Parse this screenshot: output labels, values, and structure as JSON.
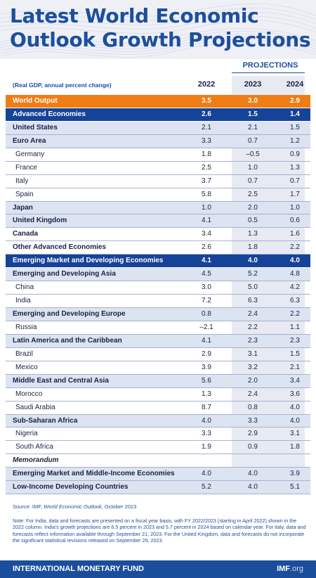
{
  "title": "Latest World Economic Outlook Growth Projections",
  "projections_label": "PROJECTIONS",
  "subtitle": "(Real GDP, annual percent change)",
  "years": [
    "2022",
    "2023",
    "2024"
  ],
  "rows": [
    {
      "name": "World Output",
      "v": [
        "3.5",
        "3.0",
        "2.9"
      ]
    },
    {
      "name": "Advanced Economies",
      "v": [
        "2.6",
        "1.5",
        "1.4"
      ]
    },
    {
      "name": "United States",
      "v": [
        "2.1",
        "2.1",
        "1.5"
      ]
    },
    {
      "name": "Euro Area",
      "v": [
        "3.3",
        "0.7",
        "1.2"
      ]
    },
    {
      "name": "Germany",
      "v": [
        "1.8",
        "–0.5",
        "0.9"
      ]
    },
    {
      "name": "France",
      "v": [
        "2.5",
        "1.0",
        "1.3"
      ]
    },
    {
      "name": "Italy",
      "v": [
        "3.7",
        "0.7",
        "0.7"
      ]
    },
    {
      "name": "Spain",
      "v": [
        "5.8",
        "2.5",
        "1.7"
      ]
    },
    {
      "name": "Japan",
      "v": [
        "1.0",
        "2.0",
        "1.0"
      ]
    },
    {
      "name": "United Kingdom",
      "v": [
        "4.1",
        "0.5",
        "0.6"
      ]
    },
    {
      "name": "Canada",
      "v": [
        "3.4",
        "1.3",
        "1.6"
      ]
    },
    {
      "name": "Other Advanced Economies",
      "v": [
        "2.6",
        "1.8",
        "2.2"
      ]
    },
    {
      "name": "Emerging Market and Developing Economies",
      "v": [
        "4.1",
        "4.0",
        "4.0"
      ]
    },
    {
      "name": "Emerging and Developing Asia",
      "v": [
        "4.5",
        "5.2",
        "4.8"
      ]
    },
    {
      "name": "China",
      "v": [
        "3.0",
        "5.0",
        "4.2"
      ]
    },
    {
      "name": "India",
      "v": [
        "7.2",
        "6.3",
        "6.3"
      ]
    },
    {
      "name": "Emerging and Developing Europe",
      "v": [
        "0.8",
        "2.4",
        "2.2"
      ]
    },
    {
      "name": "Russia",
      "v": [
        "–2.1",
        "2.2",
        "1.1"
      ]
    },
    {
      "name": "Latin America and the Caribbean",
      "v": [
        "4.1",
        "2.3",
        "2.3"
      ]
    },
    {
      "name": "Brazil",
      "v": [
        "2.9",
        "3.1",
        "1.5"
      ]
    },
    {
      "name": "Mexico",
      "v": [
        "3.9",
        "3.2",
        "2.1"
      ]
    },
    {
      "name": "Middle East and Central Asia",
      "v": [
        "5.6",
        "2.0",
        "3.4"
      ]
    },
    {
      "name": "Morocco",
      "v": [
        "1.3",
        "2.4",
        "3.6"
      ]
    },
    {
      "name": "Saudi Arabia",
      "v": [
        "8.7",
        "0.8",
        "4.0"
      ]
    },
    {
      "name": "Sub-Saharan Africa",
      "v": [
        "4.0",
        "3.3",
        "4.0"
      ]
    },
    {
      "name": "Nigeria",
      "v": [
        "3.3",
        "2.9",
        "3.1"
      ]
    },
    {
      "name": "South Africa",
      "v": [
        "1.9",
        "0.9",
        "1.8"
      ]
    },
    {
      "name": "Memorandum",
      "v": [
        "",
        "",
        ""
      ]
    },
    {
      "name": "Emerging Market and Middle-Income Economies",
      "v": [
        "4.0",
        "4.0",
        "3.9"
      ]
    },
    {
      "name": "Low-Income Developing Countries",
      "v": [
        "5.2",
        "4.0",
        "5.1"
      ]
    }
  ],
  "source_prefix": "Source: IMF, ",
  "source_italic": "World Economic Outlook",
  "source_suffix": ", October 2023",
  "note": "Note: For India, data and forecasts are presented on a fiscal year basis, with FY 2022/2023 (starting in April 2022) shown in the 2022 column. India's growth projections are 6.5 percent in 2023 and 5.7 percent in 2024 based on calendar year. For Italy, data and forecasts reflect information available through September 21, 2023. For the United Kingdom, data and forecasts do not incorporate the significant statistical revisions released on September 29, 2023.",
  "footer_left": "INTERNATIONAL MONETARY FUND",
  "footer_right_main": "IMF",
  "footer_right_suffix": ".org",
  "colors": {
    "orange": "#ef7d14",
    "navy": "#154397",
    "title_blue": "#1d4f9b",
    "row_tint": "#dce3f1"
  }
}
